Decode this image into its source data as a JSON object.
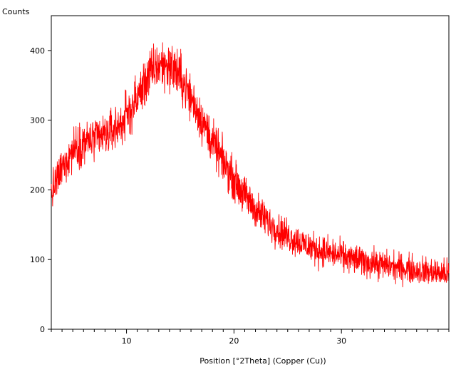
{
  "chart_data": {
    "type": "line",
    "title": "",
    "xlabel": "Position [°2Theta] (Copper (Cu))",
    "ylabel": "Counts",
    "xlim": [
      3.0,
      40.0
    ],
    "ylim": [
      0,
      450
    ],
    "x_major_ticks": [
      10,
      20,
      30
    ],
    "x_tick_labels": [
      "10",
      "20",
      "30"
    ],
    "x_minor_step": 1,
    "y_ticks": [
      0,
      100,
      200,
      300,
      400
    ],
    "y_tick_labels": [
      "0",
      "100",
      "200",
      "300",
      "400"
    ],
    "grid": false,
    "legend": "none",
    "series": [
      {
        "color": "#ff0000",
        "points": [
          [
            3.0,
            195
          ],
          [
            3.5,
            212
          ],
          [
            4.0,
            230
          ],
          [
            4.5,
            245
          ],
          [
            5.0,
            258
          ],
          [
            5.5,
            265
          ],
          [
            6.0,
            268
          ],
          [
            6.5,
            270
          ],
          [
            7.0,
            272
          ],
          [
            7.5,
            275
          ],
          [
            8.0,
            278
          ],
          [
            8.5,
            283
          ],
          [
            9.0,
            288
          ],
          [
            9.5,
            296
          ],
          [
            10.0,
            305
          ],
          [
            10.5,
            318
          ],
          [
            11.0,
            332
          ],
          [
            11.5,
            346
          ],
          [
            12.0,
            362
          ],
          [
            12.5,
            372
          ],
          [
            13.0,
            378
          ],
          [
            13.5,
            380
          ],
          [
            14.0,
            378
          ],
          [
            14.5,
            372
          ],
          [
            15.0,
            362
          ],
          [
            15.5,
            348
          ],
          [
            16.0,
            332
          ],
          [
            16.5,
            318
          ],
          [
            17.0,
            300
          ],
          [
            17.5,
            285
          ],
          [
            18.0,
            268
          ],
          [
            18.5,
            255
          ],
          [
            19.0,
            240
          ],
          [
            19.5,
            228
          ],
          [
            20.0,
            215
          ],
          [
            20.5,
            203
          ],
          [
            21.0,
            192
          ],
          [
            21.5,
            182
          ],
          [
            22.0,
            172
          ],
          [
            22.5,
            164
          ],
          [
            23.0,
            157
          ],
          [
            23.5,
            150
          ],
          [
            24.0,
            144
          ],
          [
            24.5,
            139
          ],
          [
            25.0,
            134
          ],
          [
            25.5,
            130
          ],
          [
            26.0,
            126
          ],
          [
            26.5,
            122
          ],
          [
            27.0,
            119
          ],
          [
            27.5,
            116
          ],
          [
            28.0,
            113
          ],
          [
            28.5,
            111
          ],
          [
            29.0,
            109
          ],
          [
            29.5,
            107
          ],
          [
            30.0,
            105
          ],
          [
            30.5,
            103
          ],
          [
            31.0,
            101
          ],
          [
            31.5,
            99
          ],
          [
            32.0,
            98
          ],
          [
            32.5,
            96
          ],
          [
            33.0,
            95
          ],
          [
            33.5,
            93
          ],
          [
            34.0,
            92
          ],
          [
            34.5,
            91
          ],
          [
            35.0,
            89
          ],
          [
            35.5,
            88
          ],
          [
            36.0,
            87
          ],
          [
            36.5,
            86
          ],
          [
            37.0,
            85
          ],
          [
            37.5,
            84
          ],
          [
            38.0,
            83
          ],
          [
            38.5,
            82
          ],
          [
            39.0,
            81
          ],
          [
            39.5,
            80
          ],
          [
            40.0,
            79
          ]
        ]
      }
    ]
  }
}
